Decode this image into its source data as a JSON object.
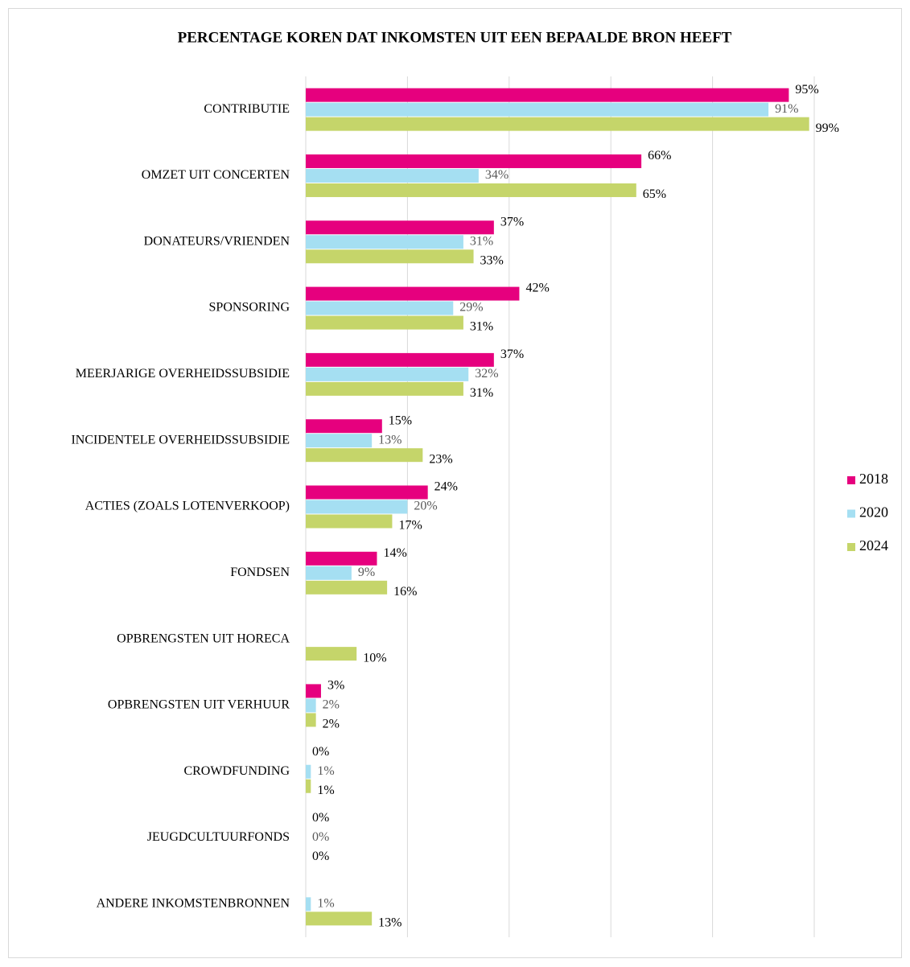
{
  "chart_data": {
    "type": "bar",
    "orientation": "horizontal",
    "title": "PERCENTAGE KOREN DAT INKOMSTEN UIT EEN BEPAALDE BRON HEEFT",
    "categories": [
      "CONTRIBUTIE",
      "OMZET UIT CONCERTEN",
      "DONATEURS/VRIENDEN",
      "SPONSORING",
      "MEERJARIGE OVERHEIDSSUBSIDIE",
      "INCIDENTELE OVERHEIDSSUBSIDIE",
      "ACTIES (ZOALS LOTENVERKOOP)",
      "FONDSEN",
      "OPBRENGSTEN UIT HORECA",
      "OPBRENGSTEN UIT VERHUUR",
      "CROWDFUNDING",
      "JEUGDCULTUURFONDS",
      "ANDERE INKOMSTENBRONNEN"
    ],
    "series": [
      {
        "name": "2018",
        "color": "#e6007e",
        "label_color": "#000000",
        "values": [
          95,
          66,
          37,
          42,
          37,
          15,
          24,
          14,
          null,
          3,
          0,
          0,
          null
        ],
        "value_labels": [
          "95%",
          "66%",
          "37%",
          "42%",
          "37%",
          "15%",
          "24%",
          "14%",
          null,
          "3%",
          "0%",
          "0%",
          null
        ]
      },
      {
        "name": "2020",
        "color": "#a5dff2",
        "label_color": "#595959",
        "values": [
          91,
          34,
          31,
          29,
          32,
          13,
          20,
          9,
          null,
          2,
          1,
          0,
          1
        ],
        "value_labels": [
          "91%",
          "34%",
          "31%",
          "29%",
          "32%",
          "13%",
          "20%",
          "9%",
          null,
          "2%",
          "1%",
          "0%",
          "1%"
        ]
      },
      {
        "name": "2024",
        "color": "#c5d56a",
        "label_color": "#000000",
        "values": [
          99,
          65,
          33,
          31,
          31,
          23,
          17,
          16,
          10,
          2,
          1,
          0,
          13
        ],
        "value_labels": [
          "99%",
          "65%",
          "33%",
          "31%",
          "31%",
          "23%",
          "17%",
          "16%",
          "10%",
          "2%",
          "1%",
          "0%",
          "13%"
        ]
      }
    ],
    "xlim": [
      0,
      100
    ],
    "xticks": [
      0,
      20,
      40,
      60,
      80,
      100
    ],
    "grid": true,
    "legend": "right"
  }
}
